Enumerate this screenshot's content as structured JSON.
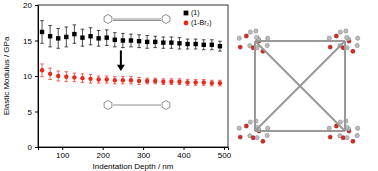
{
  "chart_data": {
    "type": "scatter",
    "x_label": "Indentation Depth / nm",
    "y_label": "Elastic Modulus / GPa",
    "x": [
      50,
      70,
      90,
      110,
      130,
      150,
      170,
      190,
      210,
      230,
      250,
      270,
      290,
      310,
      330,
      350,
      370,
      390,
      410,
      430,
      450,
      470,
      490
    ],
    "xlim": [
      40,
      510
    ],
    "xticks": [
      100,
      200,
      300,
      400,
      500
    ],
    "ylim": [
      0,
      20
    ],
    "yticks": [
      0,
      5,
      10,
      15,
      20
    ],
    "legend": "upper right",
    "series": [
      {
        "name": "(1)",
        "color": "#000000",
        "marker": "square",
        "values": [
          16.2,
          15.6,
          15.3,
          15.5,
          15.9,
          15.4,
          15.6,
          15.3,
          15.4,
          15.1,
          15.0,
          15.0,
          14.9,
          14.8,
          14.8,
          14.7,
          14.7,
          14.6,
          14.5,
          14.5,
          14.4,
          14.4,
          14.2
        ],
        "errors": [
          1.6,
          1.5,
          1.4,
          1.4,
          1.3,
          1.2,
          1.2,
          1.1,
          1.1,
          1.0,
          1.0,
          0.9,
          0.9,
          0.9,
          0.8,
          0.8,
          0.8,
          0.8,
          0.7,
          0.7,
          0.7,
          0.7,
          0.7
        ]
      },
      {
        "name": "(1-Br₂)",
        "color": "#e8291c",
        "marker": "circle",
        "values": [
          10.8,
          10.3,
          10.0,
          9.9,
          9.8,
          9.7,
          9.6,
          9.5,
          9.5,
          9.4,
          9.4,
          9.4,
          9.3,
          9.3,
          9.3,
          9.2,
          9.2,
          9.2,
          9.1,
          9.1,
          9.1,
          9.0,
          9.0
        ],
        "errors": [
          0.9,
          0.8,
          0.7,
          0.7,
          0.6,
          0.6,
          0.6,
          0.5,
          0.5,
          0.5,
          0.5,
          0.5,
          0.5,
          0.4,
          0.4,
          0.4,
          0.4,
          0.4,
          0.4,
          0.4,
          0.4,
          0.4,
          0.4
        ]
      }
    ]
  }
}
